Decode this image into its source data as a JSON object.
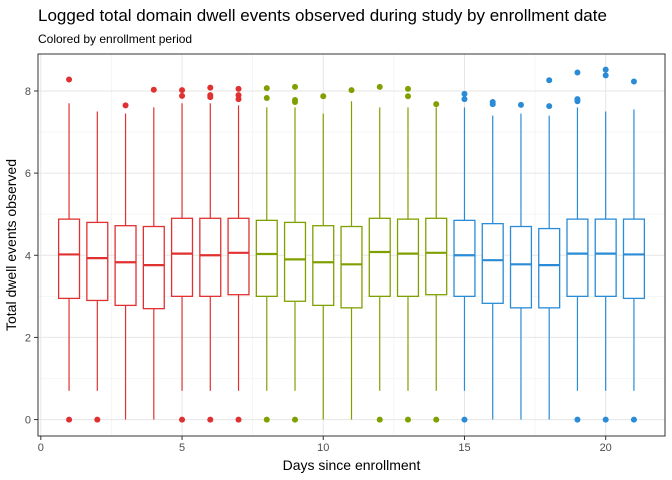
{
  "chart_data": {
    "type": "box",
    "title": "Logged total domain dwell events observed during study by enrollment date",
    "subtitle": "Colored by enrollment period",
    "xlabel": "Days since enrollment",
    "ylabel": "Total dwell events observed",
    "xlim": [
      -0.1,
      22.1
    ],
    "ylim": [
      -0.4,
      8.9
    ],
    "x_ticks": [
      0,
      5,
      10,
      15,
      20
    ],
    "y_ticks": [
      0,
      2,
      4,
      6,
      8
    ],
    "grid": true,
    "legend": "none",
    "colors": {
      "period1": "#e03131",
      "period2": "#80a000",
      "period3": "#2a8bd6"
    },
    "boxes": [
      {
        "x": 1,
        "period": "period1",
        "min": 0.7,
        "q1": 2.95,
        "median": 4.02,
        "q3": 4.88,
        "max": 7.7,
        "outliers": [
          0,
          8.28
        ]
      },
      {
        "x": 2,
        "period": "period1",
        "min": 0.7,
        "q1": 2.9,
        "median": 3.93,
        "q3": 4.8,
        "max": 7.5,
        "outliers": [
          0
        ]
      },
      {
        "x": 3,
        "period": "period1",
        "min": 0,
        "q1": 2.78,
        "median": 3.83,
        "q3": 4.72,
        "max": 7.45,
        "outliers": [
          7.65
        ]
      },
      {
        "x": 4,
        "period": "period1",
        "min": 0,
        "q1": 2.7,
        "median": 3.76,
        "q3": 4.7,
        "max": 7.6,
        "outliers": [
          8.03
        ]
      },
      {
        "x": 5,
        "period": "period1",
        "min": 0.7,
        "q1": 3.0,
        "median": 4.04,
        "q3": 4.9,
        "max": 7.7,
        "outliers": [
          0,
          7.88,
          8.02
        ]
      },
      {
        "x": 6,
        "period": "period1",
        "min": 0.7,
        "q1": 3.0,
        "median": 4.0,
        "q3": 4.9,
        "max": 7.7,
        "outliers": [
          0,
          7.85,
          7.9,
          8.08
        ]
      },
      {
        "x": 7,
        "period": "period1",
        "min": 0.7,
        "q1": 3.04,
        "median": 4.06,
        "q3": 4.9,
        "max": 7.65,
        "outliers": [
          0,
          7.8,
          7.9,
          8.05
        ]
      },
      {
        "x": 8,
        "period": "period2",
        "min": 0.7,
        "q1": 3.0,
        "median": 4.03,
        "q3": 4.85,
        "max": 7.6,
        "outliers": [
          0,
          7.83,
          8.07
        ]
      },
      {
        "x": 9,
        "period": "period2",
        "min": 0.7,
        "q1": 2.88,
        "median": 3.9,
        "q3": 4.8,
        "max": 7.6,
        "outliers": [
          0,
          7.73,
          7.78,
          8.1
        ]
      },
      {
        "x": 10,
        "period": "period2",
        "min": 0,
        "q1": 2.78,
        "median": 3.83,
        "q3": 4.72,
        "max": 7.45,
        "outliers": [
          7.87
        ]
      },
      {
        "x": 11,
        "period": "period2",
        "min": 0,
        "q1": 2.72,
        "median": 3.78,
        "q3": 4.7,
        "max": 7.75,
        "outliers": [
          8.02
        ]
      },
      {
        "x": 12,
        "period": "period2",
        "min": 0.7,
        "q1": 3.0,
        "median": 4.08,
        "q3": 4.9,
        "max": 7.6,
        "outliers": [
          0,
          8.1
        ]
      },
      {
        "x": 13,
        "period": "period2",
        "min": 0.7,
        "q1": 3.0,
        "median": 4.04,
        "q3": 4.88,
        "max": 7.6,
        "outliers": [
          0,
          7.87,
          8.05
        ]
      },
      {
        "x": 14,
        "period": "period2",
        "min": 0.7,
        "q1": 3.04,
        "median": 4.06,
        "q3": 4.9,
        "max": 7.6,
        "outliers": [
          0,
          7.68
        ]
      },
      {
        "x": 15,
        "period": "period3",
        "min": 0.7,
        "q1": 3.0,
        "median": 4.0,
        "q3": 4.85,
        "max": 7.6,
        "outliers": [
          0,
          7.8,
          7.93
        ]
      },
      {
        "x": 16,
        "period": "period3",
        "min": 0,
        "q1": 2.83,
        "median": 3.88,
        "q3": 4.77,
        "max": 7.4,
        "outliers": [
          7.68,
          7.73
        ]
      },
      {
        "x": 17,
        "period": "period3",
        "min": 0,
        "q1": 2.72,
        "median": 3.78,
        "q3": 4.7,
        "max": 7.45,
        "outliers": [
          7.66
        ]
      },
      {
        "x": 18,
        "period": "period3",
        "min": 0,
        "q1": 2.72,
        "median": 3.76,
        "q3": 4.65,
        "max": 7.4,
        "outliers": [
          7.63,
          8.26
        ]
      },
      {
        "x": 19,
        "period": "period3",
        "min": 0.7,
        "q1": 3.0,
        "median": 4.04,
        "q3": 4.88,
        "max": 7.6,
        "outliers": [
          0,
          7.75,
          7.8,
          8.45
        ]
      },
      {
        "x": 20,
        "period": "period3",
        "min": 0.7,
        "q1": 3.0,
        "median": 4.04,
        "q3": 4.88,
        "max": 7.5,
        "outliers": [
          0,
          8.38,
          8.52
        ]
      },
      {
        "x": 21,
        "period": "period3",
        "min": 0.7,
        "q1": 2.95,
        "median": 4.02,
        "q3": 4.88,
        "max": 7.55,
        "outliers": [
          0,
          8.23
        ]
      }
    ]
  }
}
